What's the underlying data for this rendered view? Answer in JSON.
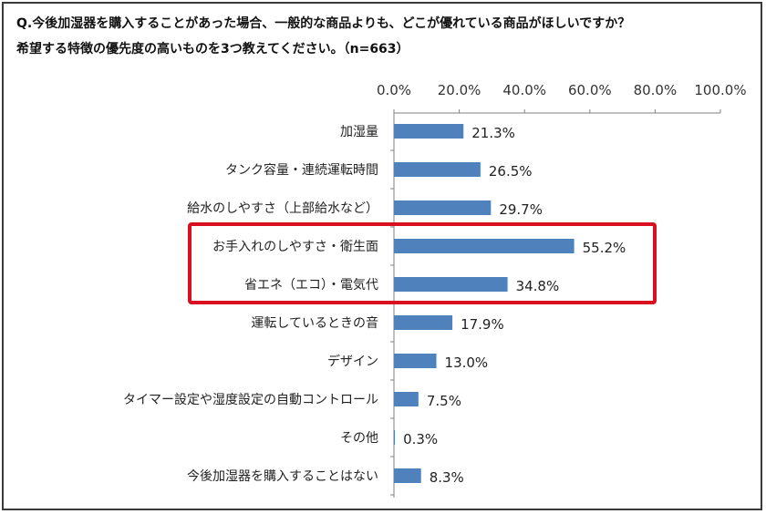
{
  "question": "Q.今後加湿器を購入することがあった場合、一般的な商品よりも、どこが優れている商品がほしいですか？ 希望する特徴の優先度の高いものを3つ教えてください。（n=663）",
  "colors": {
    "bar": "#4f81bd",
    "highlight": "#d9101f",
    "axis": "#808080"
  },
  "chart_data": {
    "type": "bar",
    "orientation": "horizontal",
    "categories": [
      "加湿量",
      "タンク容量・連続運転時間",
      "給水のしやすさ（上部給水など）",
      "お手入れのしやすさ・衛生面",
      "省エネ（エコ）・電気代",
      "運転しているときの音",
      "デザイン",
      "タイマー設定や湿度設定の自動コントロール",
      "その他",
      "今後加湿器を購入することはない"
    ],
    "values": [
      21.3,
      26.5,
      29.7,
      55.2,
      34.8,
      17.9,
      13.0,
      7.5,
      0.3,
      8.3
    ],
    "value_labels": [
      "21.3%",
      "26.5%",
      "29.7%",
      "55.2%",
      "34.8%",
      "17.9%",
      "13.0%",
      "7.5%",
      "0.3%",
      "8.3%"
    ],
    "xlim": [
      0,
      100
    ],
    "x_ticks": [
      "0.0%",
      "20.0%",
      "40.0%",
      "60.0%",
      "80.0%",
      "100.0%"
    ],
    "x_axis_position": "top",
    "grid": false,
    "highlighted_categories": [
      "お手入れのしやすさ・衛生面",
      "省エネ（エコ）・電気代"
    ]
  }
}
